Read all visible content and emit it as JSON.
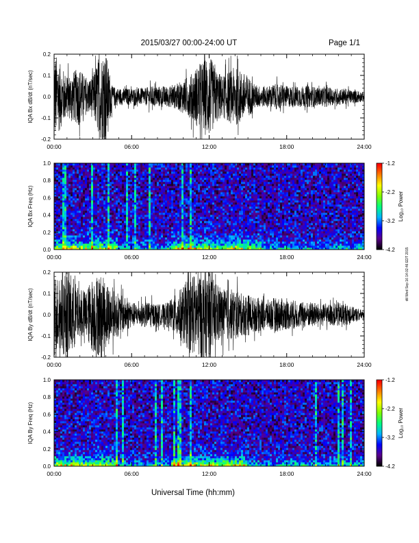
{
  "header": {
    "title": "2015/03/27  00:00-24:00 UT",
    "page_label": "Page 1/1"
  },
  "footer": {
    "xlabel": "Universal Time (hh:mm)",
    "side_stamp": "dtl Wed Sep 16 14:02:46 EDT 2015"
  },
  "colors": {
    "trace": "#000000",
    "colormap": [
      "#000000",
      "#5a008c",
      "#0000ff",
      "#00b4ff",
      "#00ff7f",
      "#7fff00",
      "#ffff00",
      "#ff7f00",
      "#ff0000"
    ]
  },
  "chart_data": [
    {
      "type": "line",
      "ylabel": "IQA Bx dB/dt (nT/sec)",
      "xlim": [
        0,
        24
      ],
      "ylim": [
        -0.2,
        0.2
      ],
      "x_ticks": [
        "00:00",
        "06:00",
        "12:00",
        "18:00",
        "24:00"
      ],
      "y_ticks": [
        "-0.2",
        "-0.1",
        "0.0",
        "0.1",
        "0.2"
      ],
      "envelope": {
        "x_hours": [
          0,
          0.5,
          1,
          1.5,
          2,
          2.5,
          3,
          3.5,
          4,
          4.5,
          5,
          5.5,
          6,
          6.5,
          7,
          7.5,
          8,
          8.5,
          9,
          9.5,
          10,
          10.5,
          11,
          11.5,
          12,
          12.5,
          13,
          13.5,
          14,
          14.5,
          15,
          15.5,
          16,
          16.5,
          17,
          17.5,
          18,
          18.5,
          19,
          19.5,
          20,
          20.5,
          21,
          21.5,
          22,
          22.5,
          23,
          23.5,
          24
        ],
        "amplitude": [
          0.22,
          0.15,
          0.1,
          0.12,
          0.14,
          0.08,
          0.1,
          0.2,
          0.22,
          0.05,
          0.04,
          0.04,
          0.04,
          0.04,
          0.04,
          0.05,
          0.05,
          0.05,
          0.05,
          0.06,
          0.08,
          0.1,
          0.14,
          0.17,
          0.2,
          0.13,
          0.1,
          0.12,
          0.14,
          0.12,
          0.1,
          0.06,
          0.05,
          0.05,
          0.06,
          0.06,
          0.05,
          0.05,
          0.05,
          0.05,
          0.05,
          0.04,
          0.05,
          0.04,
          0.04,
          0.04,
          0.03,
          0.03,
          0.02
        ]
      }
    },
    {
      "type": "heatmap",
      "ylabel": "IQA Bx Freq (Hz)",
      "xlim": [
        0,
        24
      ],
      "ylim": [
        0,
        1.0
      ],
      "x_ticks": [
        "00:00",
        "06:00",
        "12:00",
        "18:00",
        "24:00"
      ],
      "y_ticks": [
        "0.0",
        "0.2",
        "0.4",
        "0.6",
        "0.8",
        "1.0"
      ],
      "colorbar": {
        "label": "Log₁₀ Power",
        "range": [
          -4.2,
          -1.2
        ],
        "ticks": [
          "-1.2",
          "-2.2",
          "-3.2",
          "-4.2"
        ]
      },
      "activity_hours": [
        0,
        1,
        2,
        3,
        4,
        9,
        10,
        11,
        12,
        13,
        14,
        15
      ],
      "streak_hours": [
        0.8,
        2.9,
        4.2,
        5.6,
        6.3,
        7.4,
        9.9,
        10.6
      ],
      "base_level_log_power": -3.6,
      "lowfreq_level_log_power": -2.2
    },
    {
      "type": "line",
      "ylabel": "IQA By dB/dt (nT/sec)",
      "xlim": [
        0,
        24
      ],
      "ylim": [
        -0.2,
        0.2
      ],
      "x_ticks": [
        "00:00",
        "06:00",
        "12:00",
        "18:00",
        "24:00"
      ],
      "y_ticks": [
        "-0.2",
        "-0.1",
        "0.0",
        "0.1",
        "0.2"
      ],
      "envelope": {
        "x_hours": [
          0,
          0.5,
          1,
          1.5,
          2,
          2.5,
          3,
          3.5,
          4,
          4.5,
          5,
          5.5,
          6,
          6.5,
          7,
          7.5,
          8,
          8.5,
          9,
          9.5,
          10,
          10.5,
          11,
          11.5,
          12,
          12.5,
          13,
          13.5,
          14,
          14.5,
          15,
          15.5,
          16,
          16.5,
          17,
          17.5,
          18,
          18.5,
          19,
          19.5,
          20,
          20.5,
          21,
          21.5,
          22,
          22.5,
          23,
          23.5,
          24
        ],
        "amplitude": [
          0.2,
          0.17,
          0.22,
          0.18,
          0.1,
          0.12,
          0.18,
          0.2,
          0.16,
          0.12,
          0.1,
          0.08,
          0.06,
          0.05,
          0.06,
          0.06,
          0.05,
          0.05,
          0.07,
          0.1,
          0.14,
          0.18,
          0.2,
          0.22,
          0.2,
          0.15,
          0.12,
          0.12,
          0.12,
          0.1,
          0.1,
          0.08,
          0.08,
          0.07,
          0.08,
          0.08,
          0.07,
          0.07,
          0.06,
          0.06,
          0.06,
          0.05,
          0.05,
          0.05,
          0.06,
          0.05,
          0.04,
          0.03,
          0.02
        ]
      }
    },
    {
      "type": "heatmap",
      "ylabel": "IQA By Freq (Hz)",
      "xlim": [
        0,
        24
      ],
      "ylim": [
        0,
        1.0
      ],
      "x_ticks": [
        "00:00",
        "06:00",
        "12:00",
        "18:00",
        "24:00"
      ],
      "y_ticks": [
        "0.0",
        "0.2",
        "0.4",
        "0.6",
        "0.8",
        "1.0"
      ],
      "colorbar": {
        "label": "Log₁₀ Power",
        "range": [
          -4.2,
          -1.2
        ],
        "ticks": [
          "-1.2",
          "-2.2",
          "-3.2",
          "-4.2"
        ]
      },
      "activity_hours": [
        0,
        1,
        2,
        3,
        4,
        9,
        10,
        11,
        12,
        13,
        14
      ],
      "streak_hours": [
        4.8,
        5.3,
        7.9,
        8.4,
        9.3,
        9.7,
        10.6,
        20.3,
        22.0,
        22.4,
        22.9
      ],
      "base_level_log_power": -3.6,
      "lowfreq_level_log_power": -2.2
    }
  ]
}
